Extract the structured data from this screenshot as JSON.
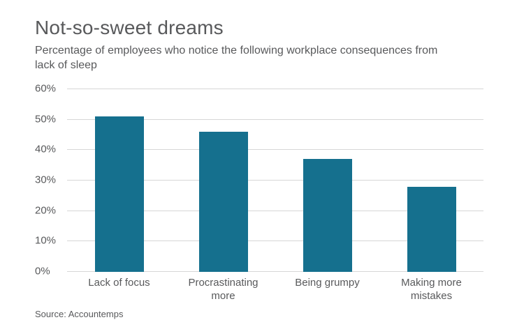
{
  "header": {
    "title": "Not-so-sweet dreams",
    "subtitle": "Percentage of employees who notice the following workplace consequences from lack of sleep"
  },
  "source": "Source: Accountemps",
  "chart_data": {
    "type": "bar",
    "title": "Not-so-sweet dreams",
    "subtitle": "Percentage of employees who notice the following workplace consequences from lack of sleep",
    "categories": [
      "Lack of focus",
      "Procrastinating more",
      "Being grumpy",
      "Making more mistakes"
    ],
    "values": [
      51,
      46,
      37,
      28
    ],
    "xlabel": "",
    "ylabel": "",
    "ylim": [
      0,
      60
    ],
    "yticks": [
      0,
      10,
      20,
      30,
      40,
      50,
      60
    ],
    "ytick_suffix": "%",
    "grid": true,
    "legend": "none",
    "bar_color": "#15708e",
    "source_label": "Source: Accountemps"
  }
}
